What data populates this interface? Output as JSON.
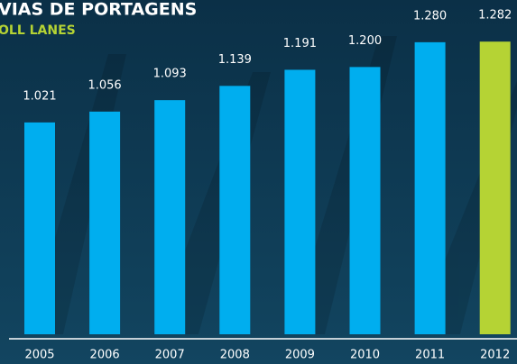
{
  "chart_data": {
    "type": "bar",
    "title": "VIAS DE PORTAGENS",
    "subtitle": "OLL LANES",
    "categories": [
      "2005",
      "2006",
      "2007",
      "2008",
      "2009",
      "2010",
      "2011",
      "2012"
    ],
    "values": [
      1021,
      1056,
      1093,
      1139,
      1191,
      1200,
      1280,
      1282
    ],
    "value_labels": [
      "1.021",
      "1.056",
      "1.093",
      "1.139",
      "1.191",
      "1.200",
      "1.280",
      "1.282"
    ],
    "colors": [
      "#00aeef",
      "#00aeef",
      "#00aeef",
      "#00aeef",
      "#00aeef",
      "#00aeef",
      "#00aeef",
      "#b5d334"
    ],
    "ylim": [
      337,
      1300
    ]
  }
}
